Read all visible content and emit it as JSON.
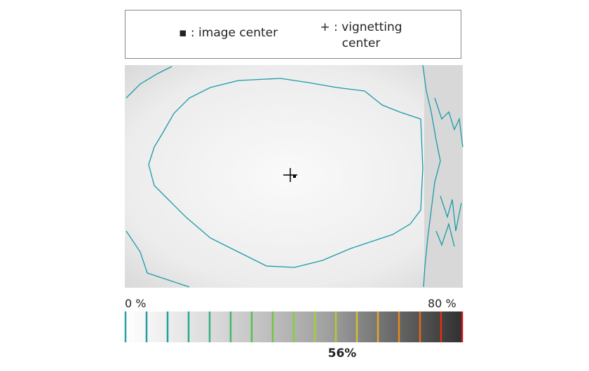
{
  "legend": {
    "image_center": "▪ : image center",
    "vignetting_center": "+ : vignetting center"
  },
  "scale": {
    "min_label": "0 %",
    "max_label": "80 %",
    "value_label": "56%"
  }
}
